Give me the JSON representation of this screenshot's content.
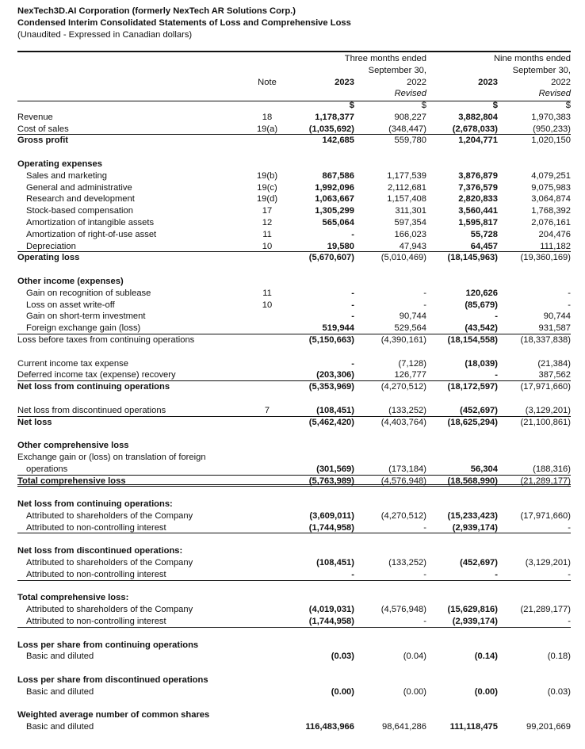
{
  "title": {
    "line1": "NexTech3D.AI Corporation (formerly NexTech AR Solutions Corp.)",
    "line2": "Condensed Interim Consolidated Statements of Loss and Comprehensive Loss",
    "line3": "(Unaudited - Expressed in Canadian dollars)"
  },
  "header": {
    "three_months": "Three months ended",
    "nine_months": "Nine months ended",
    "period_end_1": "September 30,",
    "period_end_2": "September 30,",
    "note": "Note",
    "y1": "2023",
    "y2": "2022",
    "y3": "2023",
    "y4": "2022",
    "revised_1": "Revised",
    "revised_2": "Revised"
  },
  "rows": [
    {
      "label": "",
      "note": "",
      "v": [
        "$",
        "$",
        "$",
        "$"
      ]
    },
    {
      "label": "Revenue",
      "note": "18",
      "v": [
        "1,178,377",
        "908,227",
        "3,882,804",
        "1,970,383"
      ]
    },
    {
      "label": "Cost of sales",
      "note": "19(a)",
      "v": [
        "(1,035,692)",
        "(348,447)",
        "(2,678,033)",
        "(950,233)"
      ],
      "rule": true
    },
    {
      "label": "Gross profit",
      "bold": true,
      "note": "",
      "v": [
        "142,685",
        "559,780",
        "1,204,771",
        "1,020,150"
      ]
    },
    {
      "blank": true
    },
    {
      "label": "Operating expenses",
      "bold": true
    },
    {
      "label": "Sales and marketing",
      "indent": true,
      "note": "19(b)",
      "v": [
        "867,586",
        "1,177,539",
        "3,876,879",
        "4,079,251"
      ]
    },
    {
      "label": "General and administrative",
      "indent": true,
      "note": "19(c)",
      "v": [
        "1,992,096",
        "2,112,681",
        "7,376,579",
        "9,075,983"
      ]
    },
    {
      "label": "Research and development",
      "indent": true,
      "note": "19(d)",
      "v": [
        "1,063,667",
        "1,157,408",
        "2,820,833",
        "3,064,874"
      ]
    },
    {
      "label": "Stock-based compensation",
      "indent": true,
      "note": "17",
      "v": [
        "1,305,299",
        "311,301",
        "3,560,441",
        "1,768,392"
      ]
    },
    {
      "label": "Amortization of intangible assets",
      "indent": true,
      "note": "12",
      "v": [
        "565,064",
        "597,354",
        "1,595,817",
        "2,076,161"
      ]
    },
    {
      "label": "Amortization of right-of-use asset",
      "indent": true,
      "note": "11",
      "v": [
        "-",
        "166,023",
        "55,728",
        "204,476"
      ]
    },
    {
      "label": "Depreciation",
      "indent": true,
      "note": "10",
      "v": [
        "19,580",
        "47,943",
        "64,457",
        "111,182"
      ],
      "rule": true
    },
    {
      "label": "Operating loss",
      "bold": true,
      "v": [
        "(5,670,607)",
        "(5,010,469)",
        "(18,145,963)",
        "(19,360,169)"
      ]
    },
    {
      "blank": true
    },
    {
      "label": "Other income (expenses)",
      "bold": true
    },
    {
      "label": "Gain on recognition of sublease",
      "indent": true,
      "note": "11",
      "v": [
        "-",
        "-",
        "120,626",
        "-"
      ]
    },
    {
      "label": "Loss on asset write-off",
      "indent": true,
      "note": "10",
      "v": [
        "-",
        "-",
        "(85,679)",
        "-"
      ]
    },
    {
      "label": "Gain on short-term investment",
      "indent": true,
      "v": [
        "-",
        "90,744",
        "-",
        "90,744"
      ]
    },
    {
      "label": "Foreign exchange gain (loss)",
      "indent": true,
      "v": [
        "519,944",
        "529,564",
        "(43,542)",
        "931,587"
      ],
      "rule": true
    },
    {
      "label": "Loss before taxes from continuing operations",
      "v": [
        "(5,150,663)",
        "(4,390,161)",
        "(18,154,558)",
        "(18,337,838)"
      ]
    },
    {
      "blank": true
    },
    {
      "label": "Current income tax expense",
      "v": [
        "-",
        "(7,128)",
        "(18,039)",
        "(21,384)"
      ]
    },
    {
      "label": "Deferred income tax (expense) recovery",
      "v": [
        "(203,306)",
        "126,777",
        "-",
        "387,562"
      ],
      "rule": true
    },
    {
      "label": "Net loss from continuing operations",
      "bold": true,
      "v": [
        "(5,353,969)",
        "(4,270,512)",
        "(18,172,597)",
        "(17,971,660)"
      ]
    },
    {
      "blank": true
    },
    {
      "label": "Net loss from discontinued operations",
      "note": "7",
      "v": [
        "(108,451)",
        "(133,252)",
        "(452,697)",
        "(3,129,201)"
      ],
      "rule": true
    },
    {
      "label": "Net loss",
      "bold": true,
      "v": [
        "(5,462,420)",
        "(4,403,764)",
        "(18,625,294)",
        "(21,100,861)"
      ]
    },
    {
      "blank": true
    },
    {
      "label": "Other comprehensive loss",
      "bold": true
    },
    {
      "label": "Exchange gain or (loss) on translation of foreign"
    },
    {
      "label": "operations",
      "indent": true,
      "v": [
        "(301,569)",
        "(173,184)",
        "56,304",
        "(188,316)"
      ],
      "rule": true
    },
    {
      "label": "Total comprehensive loss",
      "bold": true,
      "v": [
        "(5,763,989)",
        "(4,576,948)",
        "(18,568,990)",
        "(21,289,177)"
      ],
      "dbl": true
    },
    {
      "blank": true
    },
    {
      "label": "Net loss from continuing operations:",
      "bold": true
    },
    {
      "label": "Attributed to shareholders of the Company",
      "indent": true,
      "v": [
        "(3,609,011)",
        "(4,270,512)",
        "(15,233,423)",
        "(17,971,660)"
      ]
    },
    {
      "label": "Attributed to non-controlling interest",
      "indent": true,
      "v": [
        "(1,744,958)",
        "-",
        "(2,939,174)",
        "-"
      ],
      "rule": true
    },
    {
      "blank": true
    },
    {
      "label": "Net loss from discontinued operations:",
      "bold": true
    },
    {
      "label": "Attributed to shareholders of the Company",
      "indent": true,
      "v": [
        "(108,451)",
        "(133,252)",
        "(452,697)",
        "(3,129,201)"
      ]
    },
    {
      "label": "Attributed to non-controlling interest",
      "indent": true,
      "v": [
        "-",
        "-",
        "-",
        "-"
      ],
      "rule": true
    },
    {
      "blank": true
    },
    {
      "label": "Total comprehensive loss:",
      "bold": true
    },
    {
      "label": "Attributed to shareholders of the Company",
      "indent": true,
      "v": [
        "(4,019,031)",
        "(4,576,948)",
        "(15,629,816)",
        "(21,289,177)"
      ]
    },
    {
      "label": "Attributed to non-controlling interest",
      "indent": true,
      "v": [
        "(1,744,958)",
        "-",
        "(2,939,174)",
        "-"
      ],
      "rule": true
    },
    {
      "blank": true
    },
    {
      "label": "Loss per share from continuing operations",
      "bold": true
    },
    {
      "label": "Basic and diluted",
      "indent": true,
      "v": [
        "(0.03)",
        "(0.04)",
        "(0.14)",
        "(0.18)"
      ]
    },
    {
      "blank": true
    },
    {
      "label": "Loss per share from discontinued operations",
      "bold": true
    },
    {
      "label": "Basic and diluted",
      "indent": true,
      "v": [
        "(0.00)",
        "(0.00)",
        "(0.00)",
        "(0.03)"
      ]
    },
    {
      "blank": true
    },
    {
      "label": "Weighted average number of common shares",
      "bold": true
    },
    {
      "label": "Basic and diluted",
      "indent": true,
      "v": [
        "116,483,966",
        "98,641,286",
        "111,118,475",
        "99,201,669"
      ]
    }
  ]
}
